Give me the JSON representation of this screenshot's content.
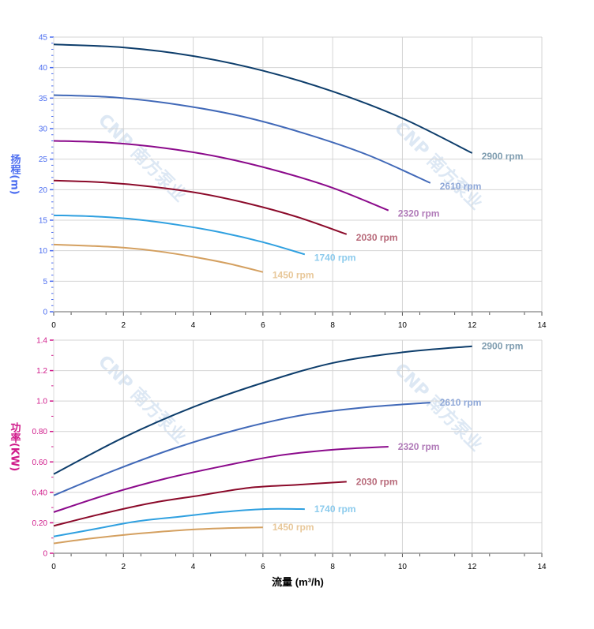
{
  "watermark": "CNP 南方泵业",
  "chart_data": [
    {
      "type": "line",
      "ylabel": "扬程(m)",
      "ylabel_chars": [
        "扬",
        "程",
        "(m)"
      ],
      "ylabel_color": "#4a6cf0",
      "xlim": [
        0,
        14
      ],
      "ylim": [
        0,
        45
      ],
      "x_ticks": [
        "0",
        "2",
        "4",
        "6",
        "8",
        "10",
        "12",
        "14"
      ],
      "y_ticks": [
        "0",
        "5",
        "10",
        "15",
        "20",
        "25",
        "30",
        "35",
        "40",
        "45"
      ],
      "grid": true,
      "series": [
        {
          "name": "2900 rpm",
          "color": "#0d3d6b",
          "label_color": "#7f9db0",
          "x": [
            0,
            2,
            4,
            6,
            8,
            10,
            12
          ],
          "y": [
            43.8,
            43.3,
            41.9,
            39.5,
            36.1,
            31.7,
            26.0
          ]
        },
        {
          "name": "2610 rpm",
          "color": "#4169b8",
          "label_color": "#8fa8d8",
          "x": [
            0,
            1.8,
            3.6,
            5.4,
            7.2,
            9,
            10.8
          ],
          "y": [
            35.5,
            35.1,
            33.9,
            32.0,
            29.2,
            25.7,
            21.1
          ]
        },
        {
          "name": "2320 rpm",
          "color": "#8b0a8b",
          "label_color": "#b07ab8",
          "x": [
            0,
            1.6,
            3.2,
            4.8,
            6.4,
            8,
            9.6
          ],
          "y": [
            28.0,
            27.7,
            26.8,
            25.3,
            23.1,
            20.3,
            16.6
          ]
        },
        {
          "name": "2030 rpm",
          "color": "#8b0a2a",
          "label_color": "#b86a7a",
          "x": [
            0,
            1.4,
            2.8,
            4.2,
            5.6,
            7,
            8.4
          ],
          "y": [
            21.5,
            21.2,
            20.5,
            19.4,
            17.7,
            15.5,
            12.7
          ]
        },
        {
          "name": "1740 rpm",
          "color": "#2fa0e0",
          "label_color": "#8ccbed",
          "x": [
            0,
            1.2,
            2.4,
            3.6,
            4.8,
            6,
            7.2
          ],
          "y": [
            15.8,
            15.6,
            15.1,
            14.2,
            13.0,
            11.4,
            9.4
          ]
        },
        {
          "name": "1450 rpm",
          "color": "#d4a060",
          "label_color": "#e8c89a",
          "x": [
            0,
            1,
            2,
            3,
            4,
            5,
            6
          ],
          "y": [
            11.0,
            10.8,
            10.5,
            9.9,
            9.0,
            7.9,
            6.5
          ]
        }
      ]
    },
    {
      "type": "line",
      "xlabel": "流量 (m³/h)",
      "ylabel": "功率(KW)",
      "ylabel_chars": [
        "功",
        "率",
        "(KW)"
      ],
      "ylabel_color": "#d01a8a",
      "xlim": [
        0,
        14
      ],
      "ylim": [
        0,
        1.4
      ],
      "x_ticks": [
        "0",
        "2",
        "4",
        "6",
        "8",
        "10",
        "12",
        "14"
      ],
      "y_ticks": [
        "0",
        "0.20",
        "0.40",
        "0.60",
        "0.80",
        "1.0",
        "1.2",
        "1.4"
      ],
      "grid": true,
      "series": [
        {
          "name": "2900 rpm",
          "color": "#0d3d6b",
          "label_color": "#7f9db0",
          "x": [
            0,
            2,
            4,
            6,
            8,
            10,
            12
          ],
          "y": [
            0.52,
            0.76,
            0.96,
            1.12,
            1.25,
            1.32,
            1.36
          ]
        },
        {
          "name": "2610 rpm",
          "color": "#4169b8",
          "label_color": "#8fa8d8",
          "x": [
            0,
            1.8,
            3.6,
            5.4,
            7.2,
            9,
            10.8
          ],
          "y": [
            0.38,
            0.55,
            0.7,
            0.82,
            0.91,
            0.96,
            0.99
          ]
        },
        {
          "name": "2320 rpm",
          "color": "#8b0a8b",
          "label_color": "#b07ab8",
          "x": [
            0,
            1.6,
            3.2,
            4.8,
            6.4,
            8,
            9.6
          ],
          "y": [
            0.27,
            0.39,
            0.49,
            0.57,
            0.64,
            0.68,
            0.7
          ]
        },
        {
          "name": "2030 rpm",
          "color": "#8b0a2a",
          "label_color": "#b86a7a",
          "x": [
            0,
            1.4,
            2.8,
            4.2,
            5.6,
            7,
            8.4
          ],
          "y": [
            0.18,
            0.26,
            0.33,
            0.38,
            0.43,
            0.45,
            0.47
          ]
        },
        {
          "name": "1740 rpm",
          "color": "#2fa0e0",
          "label_color": "#8ccbed",
          "x": [
            0,
            1.2,
            2.4,
            3.6,
            4.8,
            6,
            7.2
          ],
          "y": [
            0.11,
            0.16,
            0.21,
            0.24,
            0.27,
            0.29,
            0.29
          ]
        },
        {
          "name": "1450 rpm",
          "color": "#d4a060",
          "label_color": "#e8c89a",
          "x": [
            0,
            1,
            2,
            3,
            4,
            5,
            6
          ],
          "y": [
            0.065,
            0.095,
            0.12,
            0.14,
            0.156,
            0.165,
            0.17
          ]
        }
      ]
    }
  ]
}
